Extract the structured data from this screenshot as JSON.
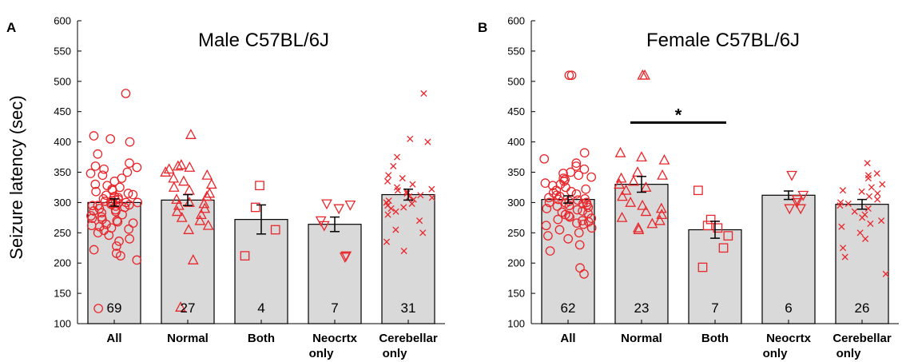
{
  "ylabel": "Seizure latency (sec)",
  "colors": {
    "bar_fill": "#d9d9d9",
    "point": "#e8262b",
    "axis": "#000000"
  },
  "chart_data": [
    {
      "type": "bar",
      "panel": "A",
      "title": "Male C57BL/6J",
      "ylabel": "Seizure latency (sec)",
      "ylim": [
        100,
        600
      ],
      "yticks": [
        100,
        150,
        200,
        250,
        300,
        350,
        400,
        450,
        500,
        550,
        600
      ],
      "categories": [
        "All",
        "Normal",
        "Both",
        "Neocrtx only",
        "Cerebellar only"
      ],
      "category_lines": [
        [
          "All"
        ],
        [
          "Normal"
        ],
        [
          "Both"
        ],
        [
          "Neocrtx",
          "only"
        ],
        [
          "Cerebellar",
          "only"
        ]
      ],
      "means": [
        300,
        304,
        272,
        264,
        313
      ],
      "sem": [
        6,
        9,
        24,
        12,
        9
      ],
      "n": [
        "69",
        "27",
        "4",
        "7",
        "31"
      ],
      "markers": [
        "circle",
        "triangle",
        "square",
        "triangle-down",
        "x"
      ],
      "points": [
        [
          480,
          410,
          405,
          400,
          380,
          365,
          360,
          358,
          355,
          350,
          348,
          345,
          340,
          335,
          330,
          328,
          325,
          322,
          320,
          318,
          315,
          313,
          312,
          310,
          308,
          306,
          305,
          304,
          303,
          302,
          300,
          300,
          299,
          298,
          297,
          296,
          295,
          295,
          294,
          292,
          290,
          288,
          286,
          285,
          283,
          280,
          278,
          276,
          274,
          272,
          270,
          268,
          266,
          264,
          262,
          260,
          258,
          256,
          254,
          250,
          246,
          240,
          236,
          228,
          222,
          216,
          212,
          205,
          125
        ],
        [
          412,
          362,
          360,
          358,
          355,
          350,
          345,
          340,
          335,
          330,
          325,
          320,
          315,
          310,
          305,
          300,
          298,
          295,
          290,
          285,
          280,
          275,
          270,
          262,
          255,
          205,
          127
        ],
        [
          328,
          292,
          255,
          212
        ],
        [
          298,
          296,
          290,
          270,
          262,
          212,
          210
        ],
        [
          480,
          405,
          400,
          375,
          360,
          345,
          340,
          335,
          330,
          325,
          322,
          320,
          318,
          315,
          312,
          310,
          308,
          305,
          303,
          300,
          298,
          295,
          292,
          290,
          285,
          280,
          270,
          255,
          250,
          235,
          220
        ]
      ]
    },
    {
      "type": "bar",
      "panel": "B",
      "title": "Female C57BL/6J",
      "ylabel": "",
      "ylim": [
        100,
        600
      ],
      "yticks": [
        100,
        150,
        200,
        250,
        300,
        350,
        400,
        450,
        500,
        550,
        600
      ],
      "categories": [
        "All",
        "Normal",
        "Both",
        "Neocrtx only",
        "Cerebellar only"
      ],
      "category_lines": [
        [
          "All"
        ],
        [
          "Normal"
        ],
        [
          "Both"
        ],
        [
          "Neocrtx",
          "only"
        ],
        [
          "Cerebellar",
          "only"
        ]
      ],
      "means": [
        305,
        330,
        255,
        312,
        297
      ],
      "sem": [
        6,
        13,
        14,
        7,
        8
      ],
      "n": [
        "62",
        "23",
        "7",
        "6",
        "26"
      ],
      "markers": [
        "circle",
        "triangle",
        "square",
        "triangle-down",
        "x"
      ],
      "significance": {
        "from": 1,
        "to": 2,
        "y": 432,
        "label": "*"
      },
      "points": [
        [
          510,
          510,
          382,
          372,
          365,
          360,
          355,
          350,
          348,
          345,
          342,
          340,
          338,
          335,
          332,
          330,
          328,
          325,
          322,
          320,
          318,
          316,
          314,
          312,
          310,
          308,
          306,
          305,
          304,
          302,
          300,
          300,
          299,
          298,
          296,
          295,
          294,
          292,
          290,
          288,
          286,
          284,
          282,
          280,
          278,
          276,
          274,
          272,
          270,
          268,
          266,
          264,
          262,
          258,
          255,
          250,
          245,
          240,
          230,
          220,
          192,
          182
        ],
        [
          510,
          510,
          382,
          375,
          370,
          350,
          345,
          340,
          335,
          330,
          325,
          320,
          310,
          300,
          295,
          290,
          285,
          280,
          275,
          270,
          265,
          258,
          255
        ],
        [
          320,
          272,
          262,
          258,
          245,
          225,
          193
        ],
        [
          345,
          312,
          305,
          300,
          290,
          290
        ],
        [
          365,
          348,
          345,
          340,
          330,
          325,
          320,
          318,
          315,
          310,
          305,
          300,
          298,
          295,
          290,
          285,
          280,
          275,
          270,
          265,
          260,
          250,
          240,
          225,
          210,
          182
        ]
      ]
    }
  ]
}
